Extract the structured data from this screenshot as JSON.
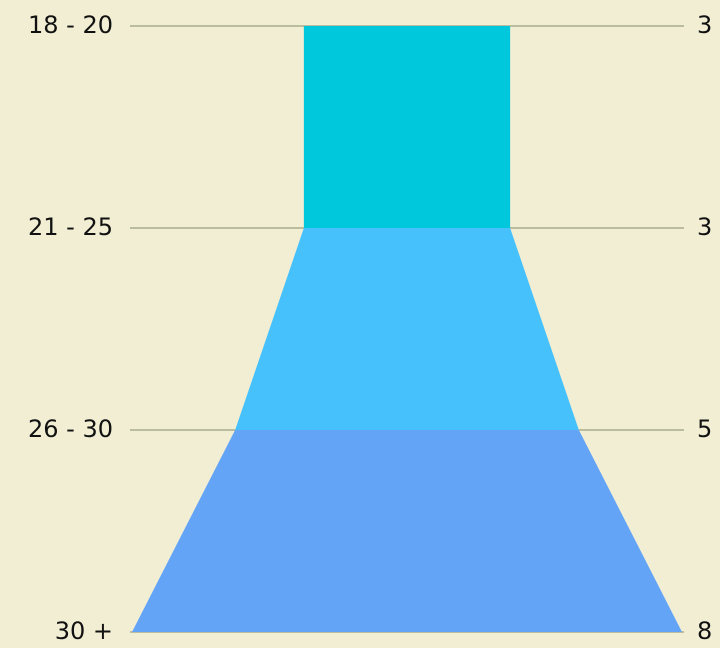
{
  "chart_data": {
    "type": "funnel",
    "title": "",
    "grid": true,
    "colors": [
      "#00c8dc",
      "#47c1fb",
      "#64a4f7"
    ],
    "levels": [
      {
        "left_label": "18 - 20",
        "value": 3
      },
      {
        "left_label": "21 - 25",
        "value": 3
      },
      {
        "left_label": "26 - 30",
        "value": 5
      },
      {
        "left_label": "30 +",
        "value": 8
      }
    ],
    "segments": [
      {
        "from_level": 0,
        "to_level": 1
      },
      {
        "from_level": 1,
        "to_level": 2
      },
      {
        "from_level": 2,
        "to_level": 3
      }
    ]
  }
}
